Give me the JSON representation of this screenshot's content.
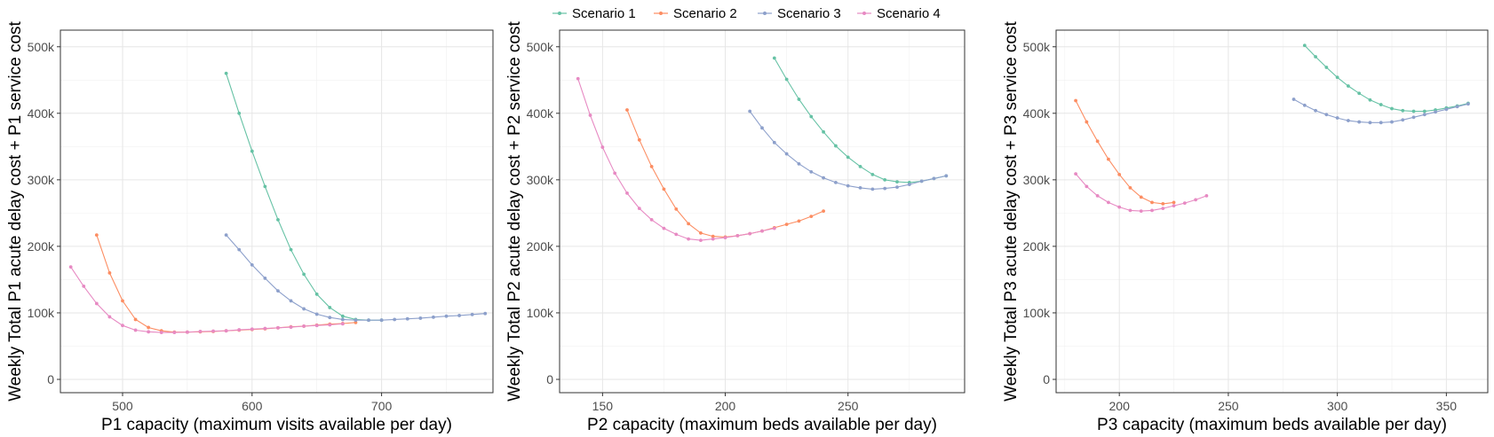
{
  "legend": [
    {
      "name": "Scenario 1",
      "color": "#66C2A5"
    },
    {
      "name": "Scenario 2",
      "color": "#FC8D62"
    },
    {
      "name": "Scenario 3",
      "color": "#8DA0CB"
    },
    {
      "name": "Scenario 4",
      "color": "#E78AC3"
    }
  ],
  "chart_data": [
    {
      "type": "line",
      "xlabel": "P1 capacity (maximum visits available per day)",
      "ylabel": "Weekly Total P1 acute delay cost + P1 service cost",
      "xlim": [
        452,
        786
      ],
      "ylim": [
        -20000,
        525000
      ],
      "xticks": [
        500,
        600,
        700
      ],
      "yticks": [
        0,
        100000,
        200000,
        300000,
        400000,
        500000
      ],
      "ytick_labels": [
        "0",
        "100k",
        "200k",
        "300k",
        "400k",
        "500k"
      ],
      "grid": true,
      "series": [
        {
          "name": "Scenario 1",
          "x": [
            580,
            590,
            600,
            610,
            620,
            630,
            640,
            650,
            660,
            670,
            680,
            690,
            700
          ],
          "values": [
            460000,
            400000,
            343000,
            290000,
            240000,
            195000,
            158000,
            128000,
            108000,
            95000,
            90000,
            89000,
            89000
          ]
        },
        {
          "name": "Scenario 2",
          "x": [
            480,
            490,
            500,
            510,
            520,
            530,
            540,
            550,
            560,
            570,
            580,
            590,
            600,
            610,
            620,
            630,
            640,
            650,
            660,
            670,
            680
          ],
          "values": [
            217000,
            160000,
            118000,
            90000,
            78000,
            73000,
            71000,
            71000,
            71500,
            72000,
            73000,
            74000,
            75000,
            76000,
            77500,
            79000,
            80000,
            81500,
            83000,
            84000,
            85500
          ]
        },
        {
          "name": "Scenario 3",
          "x": [
            580,
            590,
            600,
            610,
            620,
            630,
            640,
            650,
            660,
            670,
            680,
            690,
            700,
            710,
            720,
            730,
            740,
            750,
            760,
            770,
            780
          ],
          "values": [
            217000,
            195000,
            172000,
            152000,
            133000,
            118000,
            106000,
            98000,
            93000,
            90000,
            89000,
            89000,
            89000,
            90000,
            91000,
            92000,
            93500,
            95000,
            96000,
            97500,
            99000
          ]
        },
        {
          "name": "Scenario 4",
          "x": [
            460,
            470,
            480,
            490,
            500,
            510,
            520,
            530,
            540,
            550,
            560,
            570,
            580,
            590,
            600,
            610,
            620,
            630,
            640,
            650,
            660,
            670
          ],
          "values": [
            169000,
            140000,
            114000,
            94000,
            81000,
            74000,
            71500,
            70500,
            70500,
            71000,
            72000,
            72500,
            73000,
            74500,
            75500,
            76500,
            77500,
            78500,
            80000,
            81000,
            82000,
            83500
          ]
        }
      ]
    },
    {
      "type": "line",
      "xlabel": "P2 capacity (maximum beds available per day)",
      "ylabel": "Weekly Total P2 acute delay cost + P2 service cost",
      "xlim": [
        132.5,
        297.5
      ],
      "ylim": [
        -20000,
        525000
      ],
      "xticks": [
        150,
        200,
        250
      ],
      "yticks": [
        0,
        100000,
        200000,
        300000,
        400000,
        500000
      ],
      "ytick_labels": [
        "0",
        "100k",
        "200k",
        "300k",
        "400k",
        "500k"
      ],
      "grid": true,
      "series": [
        {
          "name": "Scenario 1",
          "x": [
            220,
            225,
            230,
            235,
            240,
            245,
            250,
            255,
            260,
            265,
            270,
            275,
            280,
            285,
            290
          ],
          "values": [
            483000,
            451000,
            421000,
            395000,
            372000,
            351000,
            334000,
            320000,
            308000,
            300000,
            297000,
            296000,
            298000,
            302000,
            306000
          ]
        },
        {
          "name": "Scenario 2",
          "x": [
            160,
            165,
            170,
            175,
            180,
            185,
            190,
            195,
            200,
            205,
            210,
            215,
            220,
            225,
            230,
            235,
            240
          ],
          "values": [
            405000,
            360000,
            320000,
            286000,
            256000,
            234000,
            220000,
            215000,
            214000,
            216000,
            219000,
            223000,
            228000,
            233000,
            238000,
            245000,
            253000
          ]
        },
        {
          "name": "Scenario 3",
          "x": [
            210,
            215,
            220,
            225,
            230,
            235,
            240,
            245,
            250,
            255,
            260,
            265,
            270,
            275,
            280,
            285,
            290
          ],
          "values": [
            403000,
            378000,
            356000,
            339000,
            324000,
            312000,
            303000,
            296000,
            291000,
            288000,
            286000,
            287000,
            289000,
            293000,
            298000,
            302000,
            306000
          ]
        },
        {
          "name": "Scenario 4",
          "x": [
            140,
            145,
            150,
            155,
            160,
            165,
            170,
            175,
            180,
            185,
            190,
            195,
            200,
            205,
            210,
            215,
            220
          ],
          "values": [
            452000,
            397000,
            349000,
            310000,
            280000,
            257000,
            240000,
            227000,
            218000,
            211000,
            209000,
            211000,
            213000,
            216000,
            219000,
            223000,
            227000
          ]
        }
      ]
    },
    {
      "type": "line",
      "xlabel": "P3 capacity (maximum beds available per day)",
      "ylabel": "Weekly Total P3 acute delay cost + P3 service cost",
      "xlim": [
        171,
        369
      ],
      "ylim": [
        -20000,
        525000
      ],
      "xticks": [
        200,
        250,
        300,
        350
      ],
      "yticks": [
        0,
        100000,
        200000,
        300000,
        400000,
        500000
      ],
      "ytick_labels": [
        "0",
        "100k",
        "200k",
        "300k",
        "400k",
        "500k"
      ],
      "grid": true,
      "series": [
        {
          "name": "Scenario 1",
          "x": [
            285,
            290,
            295,
            300,
            305,
            310,
            315,
            320,
            325,
            330,
            335,
            340,
            345,
            350,
            355,
            360
          ],
          "values": [
            502000,
            485000,
            469000,
            454000,
            441000,
            430000,
            420000,
            413000,
            407000,
            404000,
            403000,
            403000,
            405000,
            408000,
            411000,
            415000
          ]
        },
        {
          "name": "Scenario 2",
          "x": [
            180,
            185,
            190,
            195,
            200,
            205,
            210,
            215,
            220,
            225
          ],
          "values": [
            419000,
            387000,
            358000,
            331000,
            308000,
            288000,
            274000,
            266000,
            264000,
            266000
          ]
        },
        {
          "name": "Scenario 3",
          "x": [
            280,
            285,
            290,
            295,
            300,
            305,
            310,
            315,
            320,
            325,
            330,
            335,
            340,
            345,
            350,
            355,
            360
          ],
          "values": [
            421000,
            412000,
            404000,
            398000,
            393000,
            389000,
            387000,
            386000,
            386000,
            387000,
            390000,
            394000,
            398000,
            402000,
            406000,
            410000,
            414000
          ]
        },
        {
          "name": "Scenario 4",
          "x": [
            180,
            185,
            190,
            195,
            200,
            205,
            210,
            215,
            220,
            225,
            230,
            235,
            240
          ],
          "values": [
            309000,
            290000,
            276000,
            266000,
            259000,
            254000,
            253000,
            254000,
            257000,
            261000,
            265000,
            270000,
            276000
          ]
        }
      ]
    }
  ]
}
